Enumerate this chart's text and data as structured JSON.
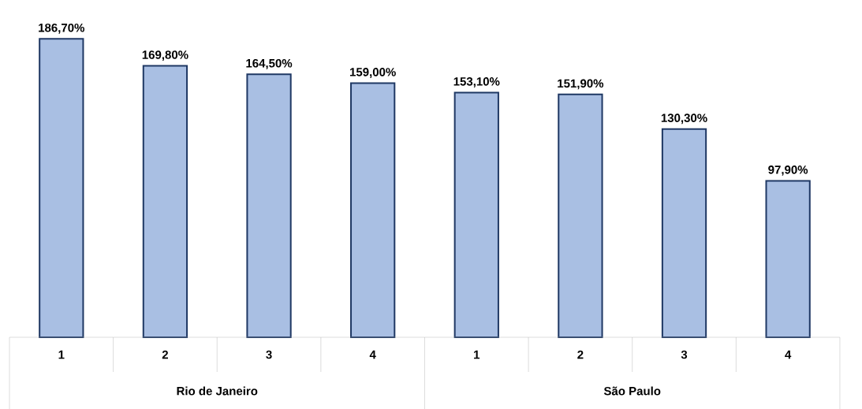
{
  "chart_data": {
    "type": "bar",
    "categories": [
      "1",
      "2",
      "3",
      "4",
      "1",
      "2",
      "3",
      "4"
    ],
    "values": [
      186.7,
      169.8,
      164.5,
      159.0,
      153.1,
      151.9,
      130.3,
      97.9
    ],
    "value_labels": [
      "186,70%",
      "169,80%",
      "164,50%",
      "159,00%",
      "153,10%",
      "151,90%",
      "130,30%",
      "97,90%"
    ],
    "color": "#a9bfe3",
    "annotations": [
      "Rio de Janeiro",
      "São Paulo"
    ]
  }
}
